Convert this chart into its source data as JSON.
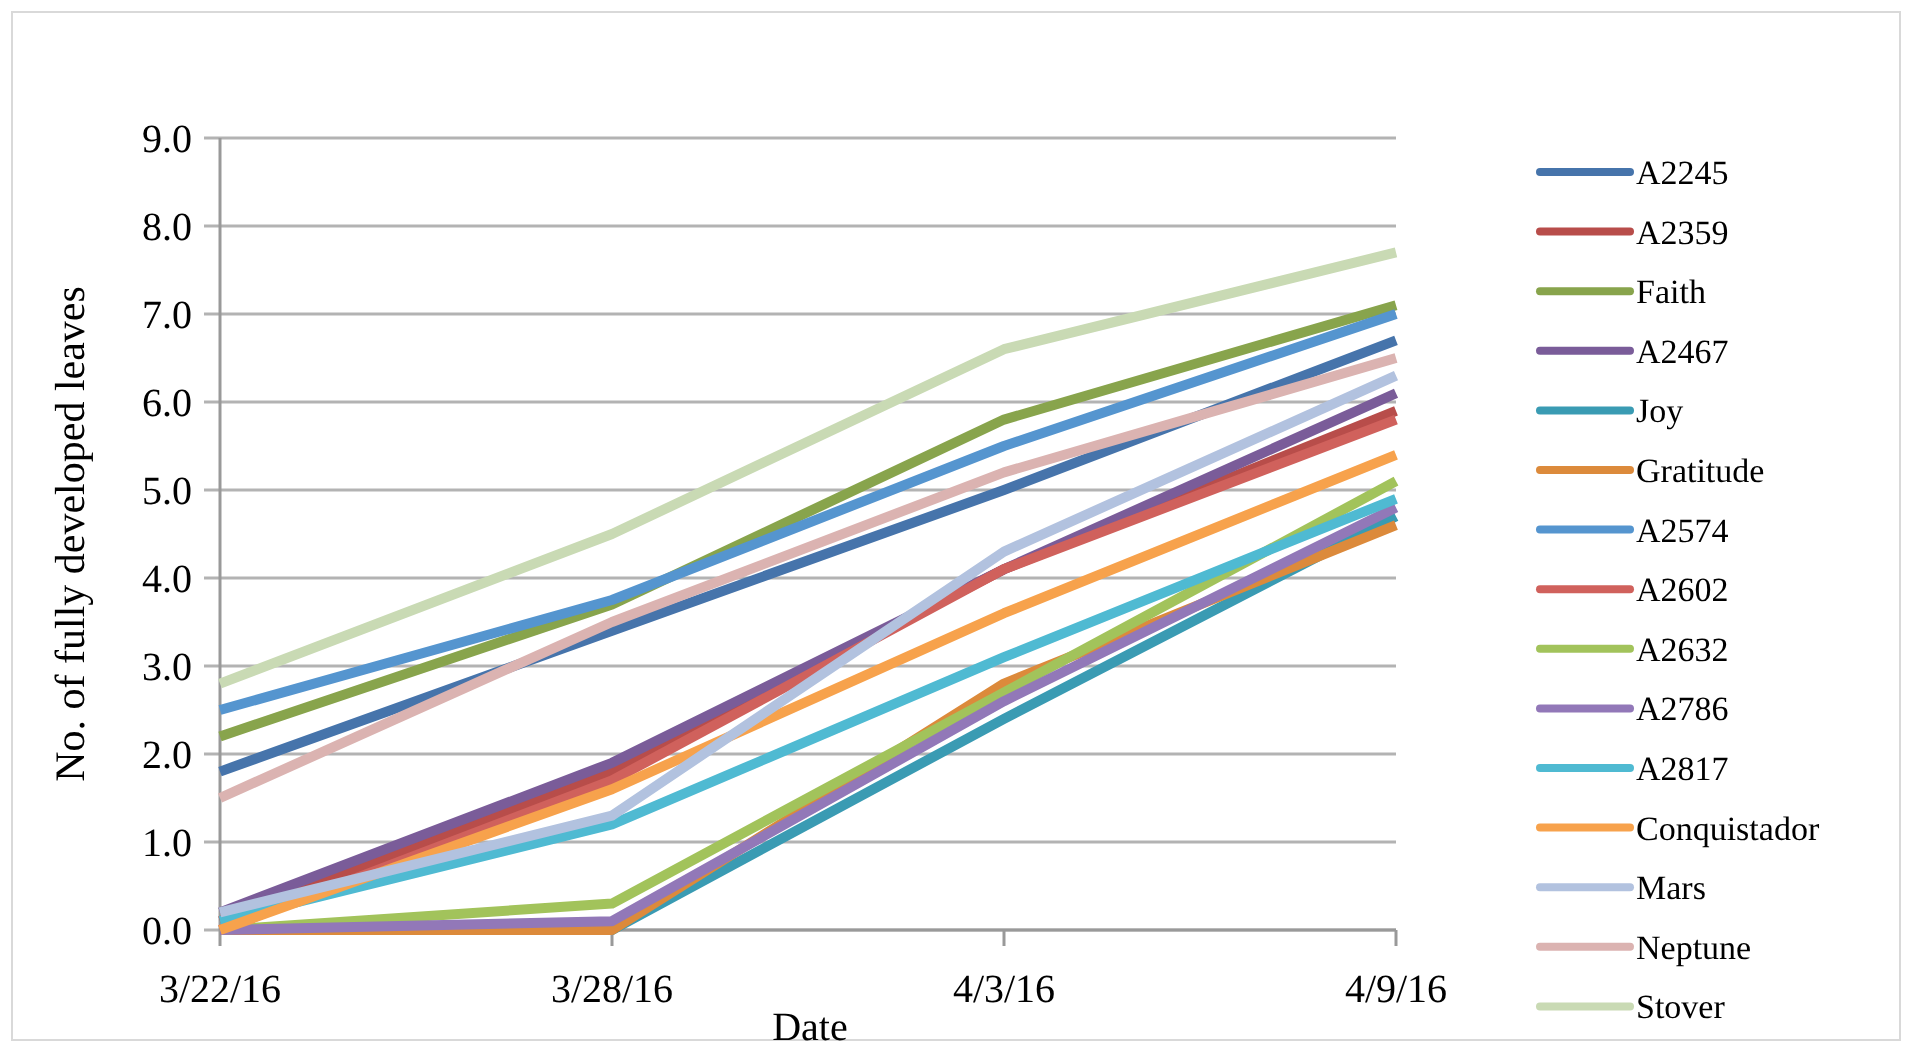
{
  "chart_data": {
    "type": "line",
    "xlabel": "Date",
    "ylabel": "No. of fully developed leaves",
    "categories": [
      "3/22/16",
      "3/28/16",
      "4/3/16",
      "4/9/16"
    ],
    "ylim": [
      0,
      9
    ],
    "yticks": [
      {
        "value": 0,
        "label": "0.0"
      },
      {
        "value": 1,
        "label": "1.0"
      },
      {
        "value": 2,
        "label": "2.0"
      },
      {
        "value": 3,
        "label": "3.0"
      },
      {
        "value": 4,
        "label": "4.0"
      },
      {
        "value": 5,
        "label": "5.0"
      },
      {
        "value": 6,
        "label": "6.0"
      },
      {
        "value": 7,
        "label": "7.0"
      },
      {
        "value": 8,
        "label": "8.0"
      },
      {
        "value": 9,
        "label": "9.0"
      }
    ],
    "grid": "y",
    "legend": "right",
    "marker": "none",
    "line_style": "solid",
    "series": [
      {
        "name": "A2245",
        "color": "#4674ab",
        "values": [
          1.8,
          3.4,
          5.0,
          6.7
        ]
      },
      {
        "name": "A2359",
        "color": "#b84d4a",
        "values": [
          0.1,
          1.8,
          4.1,
          5.9
        ]
      },
      {
        "name": "Faith",
        "color": "#88a44c",
        "values": [
          2.2,
          3.7,
          5.8,
          7.1
        ]
      },
      {
        "name": "A2467",
        "color": "#7a5c99",
        "values": [
          0.2,
          1.9,
          4.1,
          6.1
        ]
      },
      {
        "name": "Joy",
        "color": "#3a9bb3",
        "values": [
          0.0,
          0.0,
          2.4,
          4.7
        ]
      },
      {
        "name": "Gratitude",
        "color": "#dc8a3b",
        "values": [
          0.0,
          0.0,
          2.8,
          4.6
        ]
      },
      {
        "name": "A2574",
        "color": "#5595cf",
        "values": [
          2.5,
          3.75,
          5.5,
          7.0
        ]
      },
      {
        "name": "A2602",
        "color": "#d0615c",
        "values": [
          0.0,
          1.7,
          4.1,
          5.8
        ]
      },
      {
        "name": "A2632",
        "color": "#a2c35b",
        "values": [
          0.0,
          0.3,
          2.7,
          5.1
        ]
      },
      {
        "name": "A2786",
        "color": "#9278b8",
        "values": [
          0.0,
          0.1,
          2.6,
          4.8
        ]
      },
      {
        "name": "A2817",
        "color": "#4fbad2",
        "values": [
          0.1,
          1.2,
          3.1,
          4.9
        ]
      },
      {
        "name": "Conquistador",
        "color": "#f7a24c",
        "values": [
          0.0,
          1.6,
          3.6,
          5.4
        ]
      },
      {
        "name": "Mars",
        "color": "#b2c2df",
        "values": [
          0.2,
          1.3,
          4.3,
          6.3
        ]
      },
      {
        "name": "Neptune",
        "color": "#dbb3b1",
        "values": [
          1.5,
          3.5,
          5.2,
          6.5
        ]
      },
      {
        "name": "Stover",
        "color": "#c9dab4",
        "values": [
          2.8,
          4.5,
          6.6,
          7.7
        ]
      }
    ]
  }
}
